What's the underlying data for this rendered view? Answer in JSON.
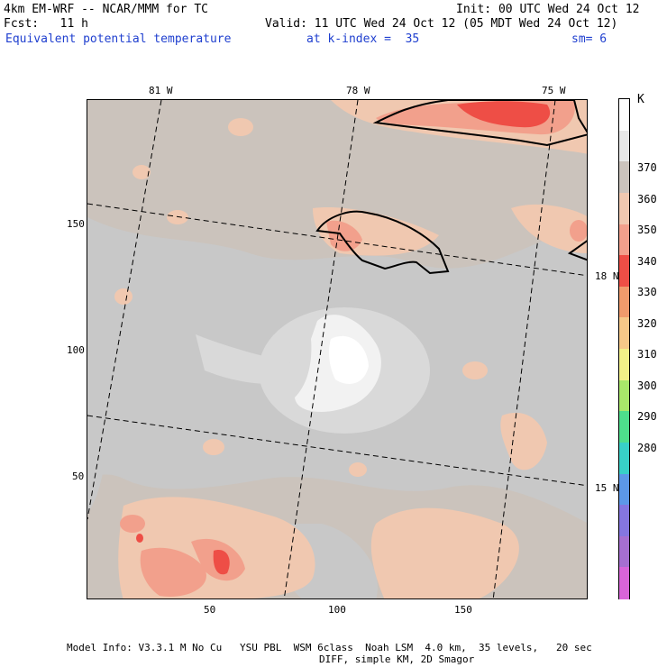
{
  "header": {
    "model": "4km EM-WRF -- NCAR/MMM for TC",
    "init": "Init: 00 UTC Wed 24 Oct 12",
    "fcst": "Fcst:   11 h",
    "valid": "Valid: 11 UTC Wed 24 Oct 12 (05 MDT Wed 24 Oct 12)",
    "field": "Equivalent potential temperature",
    "kindex": "at k-index =  35",
    "sm": "sm= 6"
  },
  "map": {
    "lon_labels": [
      "81 W",
      "78 W",
      "75 W"
    ],
    "lat_labels": [
      "18 N",
      "15 N"
    ],
    "y_ticks": [
      "150",
      "100",
      "50"
    ],
    "x_ticks": [
      "50",
      "100",
      "150"
    ],
    "colors": {
      "base": "#cbc3bc",
      "gray": "#c8c8c8",
      "light": "#e0e0e0",
      "white": "#f5f5f5",
      "peach": "#f0c8b0",
      "salmon": "#f2a08c",
      "red": "#ee4e46"
    }
  },
  "colorbar": {
    "unit": "K",
    "labels": [
      "370",
      "360",
      "350",
      "340",
      "330",
      "320",
      "310",
      "300",
      "290",
      "280"
    ],
    "colors": [
      "#ffffff",
      "#e8e8e8",
      "#cbc3bc",
      "#f0c8b0",
      "#f2a08c",
      "#ee4e46",
      "#f09a6c",
      "#f6c888",
      "#f2f088",
      "#a8e86a",
      "#4ede8c",
      "#38d0c8",
      "#5c98e8",
      "#8476e0",
      "#a66fd0",
      "#d864d8"
    ]
  },
  "footer": {
    "line1": "Model Info: V3.3.1 M No Cu   YSU PBL  WSM 6class  Noah LSM  4.0 km,  35 levels,   20 sec",
    "line2": "DIFF, simple KM, 2D Smagor"
  }
}
